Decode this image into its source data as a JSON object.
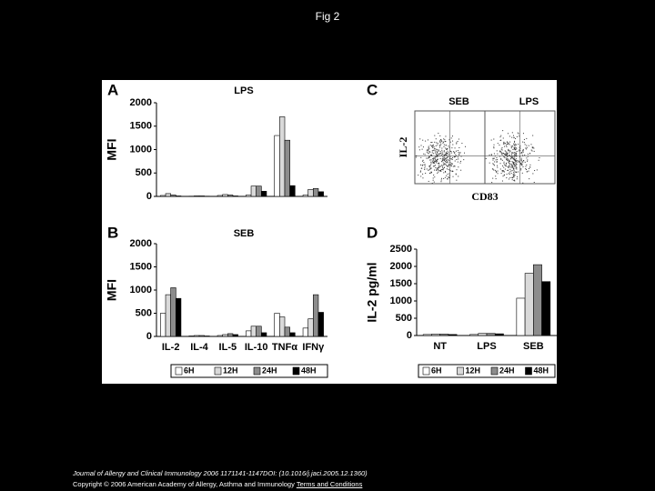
{
  "title": "Fig 2",
  "chart_data": [
    {
      "type": "bar",
      "panel": "A",
      "title": "LPS",
      "ylabel": "MFI",
      "categories": [
        null,
        null,
        null,
        null,
        null,
        null
      ],
      "series": [
        {
          "color": "#ffffff",
          "values": [
            20,
            5,
            20,
            30,
            1300,
            30
          ]
        },
        {
          "color": "#d9d9d9",
          "values": [
            60,
            10,
            40,
            220,
            1700,
            150
          ]
        },
        {
          "color": "#8c8c8c",
          "values": [
            30,
            10,
            30,
            220,
            1200,
            170
          ]
        },
        {
          "color": "#000000",
          "values": [
            10,
            5,
            10,
            110,
            230,
            100
          ]
        }
      ],
      "ylim": [
        0,
        2000
      ],
      "yticks": [
        0,
        500,
        1000,
        1500,
        2000
      ]
    },
    {
      "type": "flow",
      "panel": "C",
      "titles": [
        "SEB",
        "LPS"
      ],
      "ylabel": "IL-2",
      "xlabel": "CD83"
    },
    {
      "type": "bar",
      "panel": "B",
      "title": "SEB",
      "ylabel": "MFI",
      "categories": [
        "IL-2",
        "IL-4",
        "IL-5",
        "IL-10",
        "TNFα",
        "IFNγ"
      ],
      "series": [
        {
          "name": "6H",
          "color": "#ffffff",
          "values": [
            500,
            10,
            20,
            120,
            500,
            180
          ]
        },
        {
          "name": "12H",
          "color": "#d9d9d9",
          "values": [
            900,
            20,
            40,
            220,
            420,
            380
          ]
        },
        {
          "name": "24H",
          "color": "#8c8c8c",
          "values": [
            1050,
            20,
            60,
            220,
            200,
            900
          ]
        },
        {
          "name": "48H",
          "color": "#000000",
          "values": [
            820,
            10,
            40,
            80,
            80,
            520
          ]
        }
      ],
      "ylim": [
        0,
        2000
      ],
      "yticks": [
        0,
        500,
        1000,
        1500,
        2000
      ],
      "legend": "bottom"
    },
    {
      "type": "bar",
      "panel": "D",
      "ylabel": "IL-2 pg/ml",
      "categories": [
        "NT",
        "LPS",
        "SEB"
      ],
      "series": [
        {
          "name": "6H",
          "color": "#ffffff",
          "values": [
            30,
            30,
            1080
          ]
        },
        {
          "name": "12H",
          "color": "#d9d9d9",
          "values": [
            40,
            60,
            1800
          ]
        },
        {
          "name": "24H",
          "color": "#8c8c8c",
          "values": [
            40,
            60,
            2050
          ]
        },
        {
          "name": "48H",
          "color": "#000000",
          "values": [
            30,
            50,
            1560
          ]
        }
      ],
      "ylim": [
        0,
        2500
      ],
      "yticks": [
        0,
        500,
        1000,
        1500,
        2000,
        2500
      ],
      "legend": "bottom"
    }
  ],
  "footer": {
    "citation": "Journal of Allergy and Clinical Immunology 2006 1171141-1147DOI: (10.1016/j.jaci.2005.12.1360)",
    "copyright": "Copyright © 2006 American Academy of Allergy, Asthma and Immunology",
    "link": "Terms and Conditions"
  }
}
